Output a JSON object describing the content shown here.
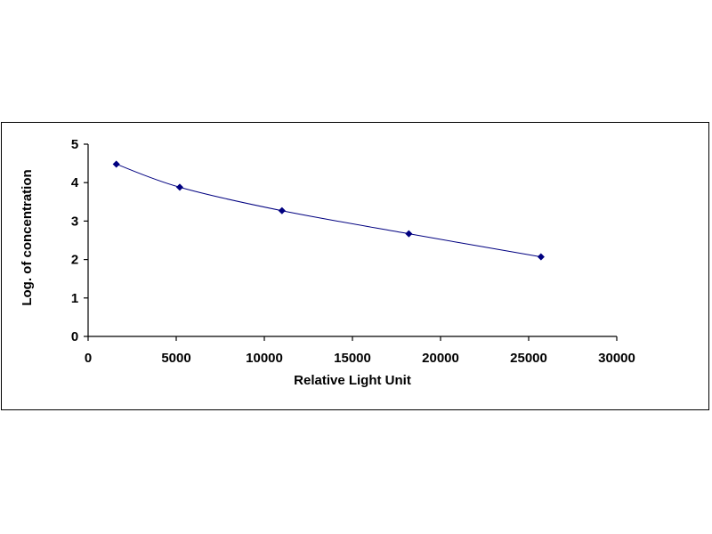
{
  "chart_data": {
    "type": "scatter",
    "title": "",
    "xlabel": "Relative Light Unit",
    "ylabel": "Log. of concentration",
    "xlim": [
      0,
      30000
    ],
    "ylim": [
      0,
      5
    ],
    "xticks": [
      0,
      5000,
      10000,
      15000,
      20000,
      25000,
      30000
    ],
    "yticks": [
      0,
      1,
      2,
      3,
      4,
      5
    ],
    "grid": false,
    "legend": "none",
    "series": [
      {
        "marker": "diamond",
        "line": "smooth",
        "color": "#000080",
        "points": [
          {
            "x": 1600,
            "y": 4.48
          },
          {
            "x": 5200,
            "y": 3.88
          },
          {
            "x": 11000,
            "y": 3.27
          },
          {
            "x": 18200,
            "y": 2.67
          },
          {
            "x": 25700,
            "y": 2.07
          }
        ]
      }
    ]
  }
}
